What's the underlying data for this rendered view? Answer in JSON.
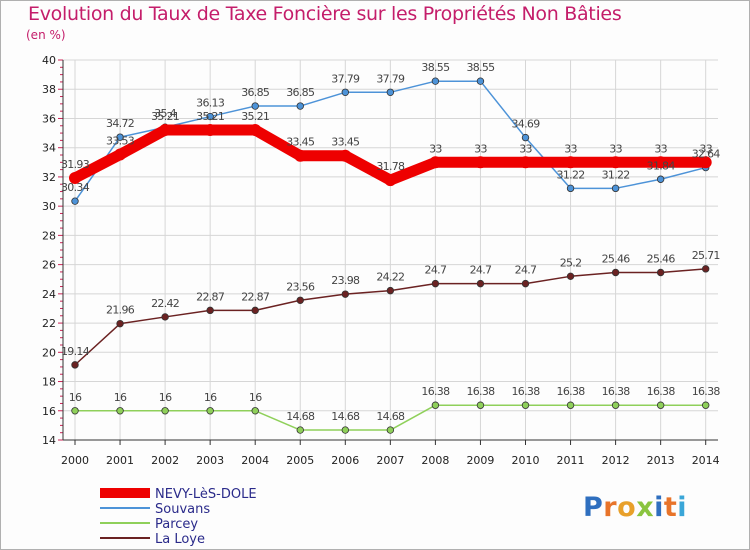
{
  "chart_data": {
    "type": "line",
    "title": "Evolution du Taux de Taxe Foncière sur les Propriétés Non Bâties",
    "ylabel": "(en %)",
    "xlabel": "",
    "ylim": [
      14,
      40
    ],
    "yticks": [
      14,
      16,
      18,
      20,
      22,
      24,
      26,
      28,
      30,
      32,
      34,
      36,
      38,
      40
    ],
    "categories": [
      "2000",
      "2001",
      "2002",
      "2003",
      "2004",
      "2005",
      "2006",
      "2007",
      "2008",
      "2009",
      "2010",
      "2011",
      "2012",
      "2013",
      "2014"
    ],
    "grid": true,
    "legend_position": "bottom-left",
    "series": [
      {
        "name": "NEVY-LèS-DOLE",
        "color": "#ee0000",
        "values": [
          31.93,
          33.53,
          35.21,
          35.21,
          35.21,
          33.45,
          33.45,
          31.78,
          33,
          33,
          33,
          33,
          33,
          33,
          33
        ],
        "labels": [
          "31.93",
          "33.53",
          "35.21",
          "35.21",
          "35.21",
          "33.45",
          "33.45",
          "31.78",
          "33",
          "33",
          "33",
          "33",
          "33",
          "33",
          "33"
        ]
      },
      {
        "name": "Souvans",
        "color": "#4d93d8",
        "values": [
          30.34,
          34.72,
          35.4,
          36.13,
          36.85,
          36.85,
          37.79,
          37.79,
          38.55,
          38.55,
          34.69,
          31.22,
          31.22,
          31.84,
          32.64
        ],
        "labels": [
          "30.34",
          "34.72",
          "35.4",
          "36.13",
          "36.85",
          "36.85",
          "37.79",
          "37.79",
          "38.55",
          "38.55",
          "34.69",
          "31.22",
          "31.22",
          "31.84",
          "32.64"
        ]
      },
      {
        "name": "Parcey",
        "color": "#8fd05a",
        "values": [
          16,
          16,
          16,
          16,
          16,
          14.68,
          14.68,
          14.68,
          16.38,
          16.38,
          16.38,
          16.38,
          16.38,
          16.38,
          16.38
        ],
        "labels": [
          "16",
          "16",
          "16",
          "16",
          "16",
          "14.68",
          "14.68",
          "14.68",
          "16.38",
          "16.38",
          "16.38",
          "16.38",
          "16.38",
          "16.38",
          "16.38"
        ]
      },
      {
        "name": "La Loye",
        "color": "#6b2222",
        "values": [
          19.14,
          21.96,
          22.42,
          22.87,
          22.87,
          23.56,
          23.98,
          24.22,
          24.7,
          24.7,
          24.7,
          25.2,
          25.46,
          25.46,
          25.71
        ],
        "labels": [
          "19.14",
          "21.96",
          "22.42",
          "22.87",
          "22.87",
          "23.56",
          "23.98",
          "24.22",
          "24.7",
          "24.7",
          "24.7",
          "25.2",
          "25.46",
          "25.46",
          "25.71"
        ]
      }
    ]
  },
  "brand": {
    "logo_text": "Proxiti"
  }
}
